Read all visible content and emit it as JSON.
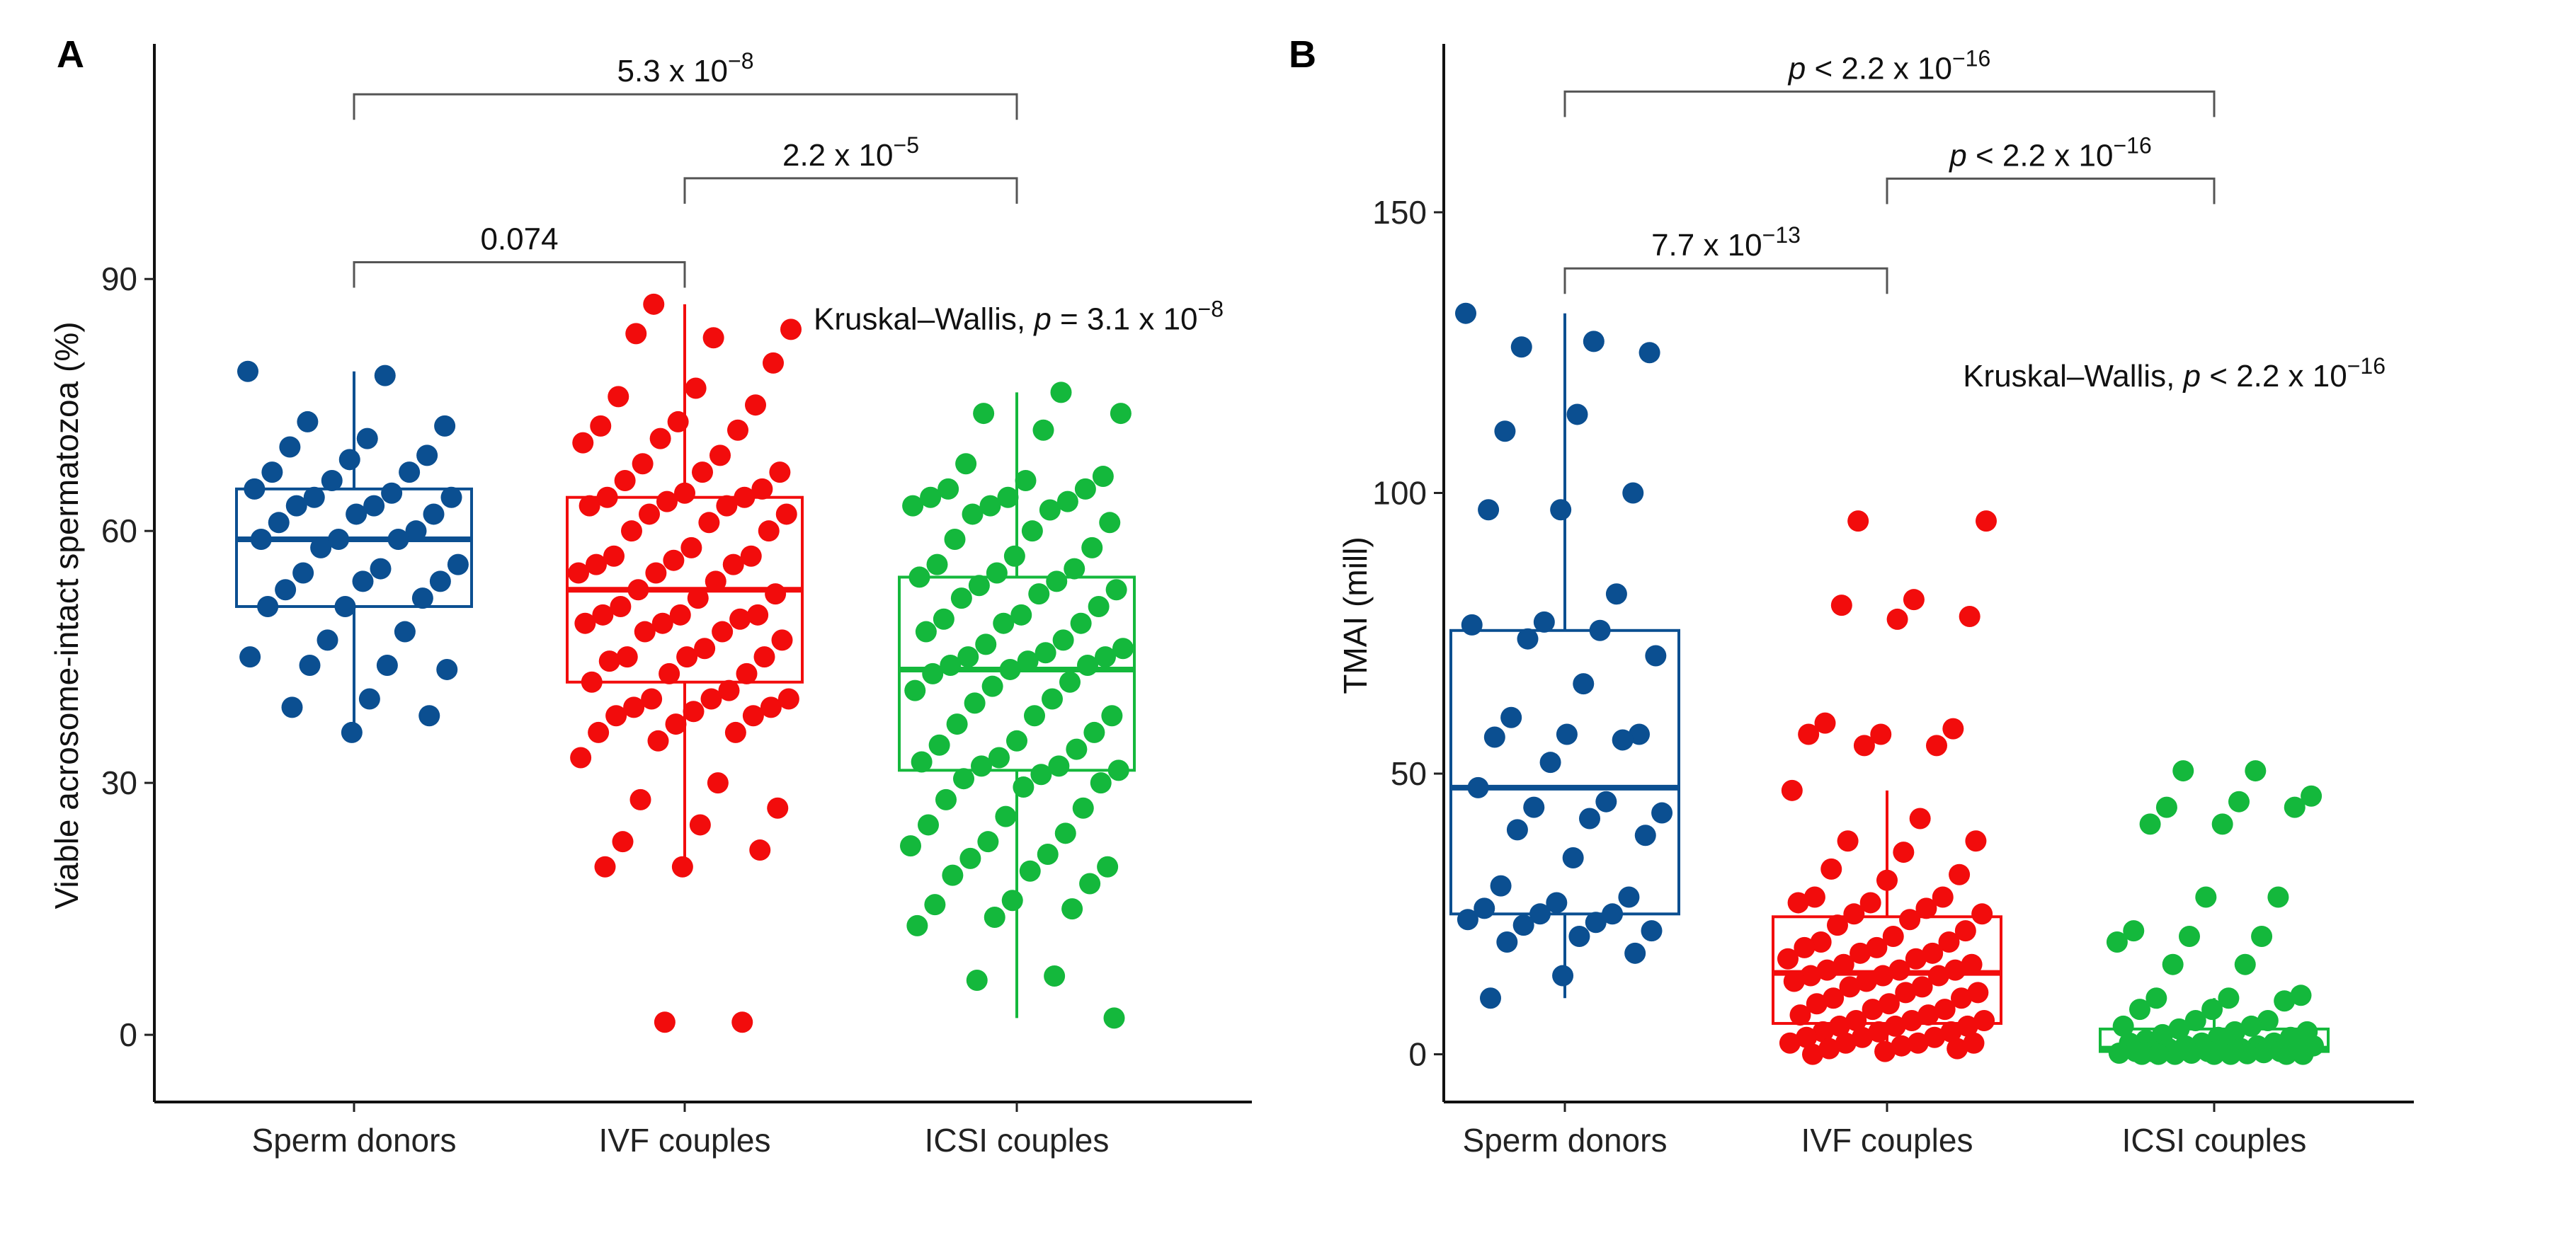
{
  "colors": {
    "Sperm donors": "#0b4f91",
    "IVF couples": "#f20c0c",
    "ICSI couples": "#14b83c",
    "bracket": "#555555"
  },
  "chart_data": [
    {
      "panel": "A",
      "type": "boxplot",
      "ylabel": "Viable acrosome-intact spermatozoa (%)",
      "xlabel": "",
      "categories": [
        "Sperm donors",
        "IVF couples",
        "ICSI couples"
      ],
      "yticks": [
        0,
        30,
        60,
        90
      ],
      "ylim": [
        -8,
        118
      ],
      "boxes": [
        {
          "name": "Sperm donors",
          "whisker_low": 36,
          "q1": 51,
          "median": 59,
          "q3": 65,
          "whisker_high": 79
        },
        {
          "name": "IVF couples",
          "whisker_low": 20,
          "q1": 42,
          "median": 53,
          "q3": 64,
          "whisker_high": 87
        },
        {
          "name": "ICSI couples",
          "whisker_low": 2,
          "q1": 31.5,
          "median": 43.5,
          "q3": 54.5,
          "whisker_high": 76.5
        }
      ],
      "points": [
        [
          79,
          78.5,
          73,
          72.5,
          71,
          70,
          69,
          68.5,
          67,
          67,
          66,
          65,
          64.5,
          64,
          64,
          63,
          63,
          62,
          62,
          61,
          60,
          59,
          59,
          59,
          58,
          56,
          55.5,
          55,
          54,
          54,
          53,
          52,
          51,
          51,
          48,
          47,
          45,
          44,
          44,
          43.5,
          40,
          39,
          38,
          36
        ],
        [
          87,
          84,
          83,
          83.5,
          80,
          77,
          76,
          75,
          73,
          72.5,
          72,
          71,
          70.5,
          69,
          68,
          67,
          67,
          66,
          65,
          64.5,
          64,
          64,
          63.5,
          63,
          63,
          62,
          62,
          61,
          60,
          60,
          58,
          57,
          57,
          56.5,
          56,
          56,
          55,
          55,
          54,
          53,
          52.5,
          52,
          51,
          50,
          50,
          50,
          49.5,
          49,
          49,
          48,
          48,
          47,
          46,
          45,
          45,
          45,
          44.5,
          43,
          43,
          42,
          41,
          40,
          40,
          40,
          39,
          39,
          38.5,
          38,
          38,
          37,
          36,
          36,
          35,
          33,
          30,
          28,
          27,
          25,
          23,
          22,
          20,
          20,
          1.5,
          1.5
        ],
        [
          76.5,
          74,
          74,
          72,
          68,
          66.5,
          66,
          65,
          65,
          64,
          64,
          63.5,
          63,
          63,
          62.5,
          62,
          61,
          60,
          59,
          58,
          57,
          56,
          55.5,
          55,
          54.5,
          54,
          53.5,
          53,
          52.5,
          52,
          51,
          50,
          49.5,
          49,
          49,
          48,
          47,
          46.5,
          46,
          45.5,
          45,
          45,
          44.5,
          44,
          44,
          43.5,
          43,
          42,
          41.5,
          41,
          40,
          39.5,
          38,
          38,
          37,
          36,
          35,
          34.5,
          34,
          33,
          32.5,
          32,
          32,
          31.5,
          31,
          30.5,
          30,
          29.5,
          28,
          27,
          26,
          25,
          24,
          23,
          22.5,
          21.5,
          21,
          20,
          19.5,
          19,
          18,
          16,
          15.5,
          15,
          14,
          13,
          7,
          6.5,
          2
        ]
      ],
      "comparisons": [
        {
          "from": 0,
          "to": 2,
          "y": 112,
          "prefix": "",
          "label": "5.3 x 10",
          "exp": "−8"
        },
        {
          "from": 1,
          "to": 2,
          "y": 102,
          "prefix": "",
          "label": "2.2 x 10",
          "exp": "−5"
        },
        {
          "from": 0,
          "to": 1,
          "y": 92,
          "prefix": "",
          "label": "0.074",
          "exp": ""
        }
      ],
      "global_test": {
        "label": "Kruskal–Wallis, ",
        "p_symbol": "p",
        "value": " = 3.1 x 10",
        "exp": "−8",
        "y": 84
      }
    },
    {
      "panel": "B",
      "type": "boxplot",
      "ylabel": "TMAI (mill)",
      "xlabel": "",
      "categories": [
        "Sperm donors",
        "IVF couples",
        "ICSI couples"
      ],
      "yticks": [
        0,
        50,
        100,
        150
      ],
      "ylim": [
        -8.5,
        180
      ],
      "boxes": [
        {
          "name": "Sperm donors",
          "whisker_low": 10,
          "q1": 25,
          "median": 47.5,
          "q3": 75.5,
          "whisker_high": 132
        },
        {
          "name": "IVF couples",
          "whisker_low": 0,
          "q1": 5.5,
          "median": 14.5,
          "q3": 24.5,
          "whisker_high": 47
        },
        {
          "name": "ICSI couples",
          "whisker_low": 0,
          "q1": 0.5,
          "median": 1,
          "q3": 4.5,
          "whisker_high": 10
        }
      ],
      "points": [
        [
          132,
          127,
          126,
          125,
          114,
          111,
          100,
          97,
          97,
          82,
          77,
          76.5,
          75.5,
          74,
          71,
          66,
          60,
          57,
          57,
          56.5,
          56,
          52,
          47.5,
          45,
          44,
          43,
          42,
          40,
          39,
          35,
          30,
          28,
          27,
          26,
          25,
          25,
          24,
          23.5,
          23,
          22,
          21,
          20,
          18,
          14,
          10
        ],
        [
          95,
          95,
          81,
          80,
          78,
          77.5,
          59,
          58,
          57,
          57,
          55,
          55,
          47,
          42,
          38,
          38,
          36,
          33,
          32,
          31,
          28,
          28,
          27,
          27,
          26,
          25,
          25,
          24,
          23,
          22,
          21,
          20,
          20,
          19,
          19,
          18,
          18,
          17,
          17,
          16,
          16,
          15,
          15,
          15,
          14,
          14,
          14,
          13,
          13,
          12,
          12,
          11,
          11,
          10,
          10,
          9,
          9,
          8,
          8,
          7,
          7,
          6,
          6,
          6,
          5,
          5,
          5,
          4,
          4,
          4,
          3,
          3,
          3,
          2,
          2,
          2,
          2,
          1.5,
          1,
          1,
          0.5,
          0
        ],
        [
          50.5,
          50.5,
          46,
          45,
          44,
          44,
          41,
          41,
          28,
          28,
          22,
          21,
          21,
          20,
          16,
          16,
          10.5,
          10,
          10,
          9.5,
          8,
          8,
          6,
          6,
          5,
          5,
          4.5,
          4,
          4,
          3.5,
          3,
          3,
          2.5,
          2,
          2,
          2,
          1.5,
          1.5,
          1.5,
          1,
          1,
          1,
          1,
          0.5,
          0.5,
          0.5,
          0.5,
          0.3,
          0.2,
          0.2,
          0.1,
          0,
          0,
          0,
          0,
          0,
          0,
          0
        ]
      ],
      "comparisons": [
        {
          "from": 0,
          "to": 2,
          "y": 171.5,
          "prefix": "p",
          "label": " < 2.2 x 10",
          "exp": "−16"
        },
        {
          "from": 1,
          "to": 2,
          "y": 156,
          "prefix": "p",
          "label": " < 2.2 x 10",
          "exp": "−16"
        },
        {
          "from": 0,
          "to": 1,
          "y": 140,
          "prefix": "",
          "label": "7.7 x 10",
          "exp": "−13"
        }
      ],
      "global_test": {
        "label": "Kruskal–Wallis, ",
        "p_symbol": "p",
        "value": " < 2.2 x 10",
        "exp": "−16",
        "y": 119
      }
    }
  ]
}
